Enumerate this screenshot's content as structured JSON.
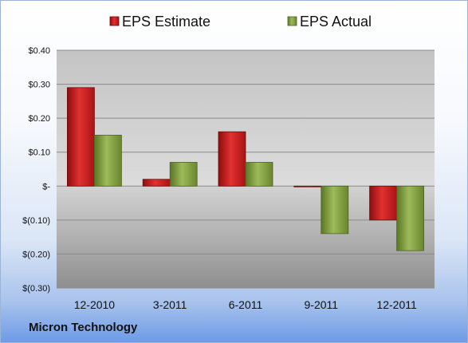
{
  "company": "Micron Technology",
  "colors": {
    "estimate": "#c41a1a",
    "actual": "#7d9c3a"
  },
  "chart_data": {
    "type": "bar",
    "categories": [
      "12-2010",
      "3-2011",
      "6-2011",
      "9-2011",
      "12-2011"
    ],
    "series": [
      {
        "name": "EPS Estimate",
        "values": [
          0.29,
          0.02,
          0.16,
          0.0,
          -0.1
        ]
      },
      {
        "name": "EPS Actual",
        "values": [
          0.15,
          0.07,
          0.07,
          -0.14,
          -0.19
        ]
      }
    ],
    "ylim": [
      -0.3,
      0.4
    ],
    "yticks": [
      0.4,
      0.3,
      0.2,
      0.1,
      0.0,
      -0.1,
      -0.2,
      -0.3
    ],
    "ytick_labels": [
      "$0.40",
      "$0.30",
      "$0.20",
      "$0.10",
      "$-",
      "$(0.10)",
      "$(0.20)",
      "$(0.30)"
    ],
    "legend": "top",
    "grid": true
  }
}
